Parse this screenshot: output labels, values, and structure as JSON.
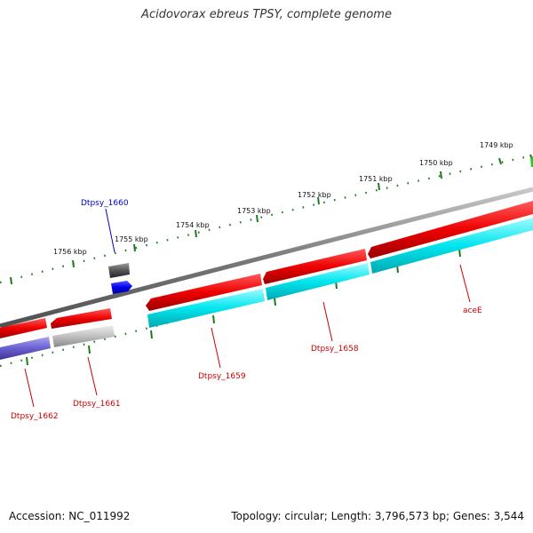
{
  "title": "Acidovorax ebreus TPSY, complete genome",
  "footer": {
    "accession": "Accession: NC_011992",
    "summary": "Topology: circular; Length: 3,796,573 bp; Genes: 3,544"
  },
  "colors": {
    "backbone": "#808080",
    "tick": "#1e7a1e",
    "forward_gene": "#ee0000",
    "cds": "#00e5ee",
    "label_red": "#cc0000",
    "label_blue": "#0000bb"
  },
  "scale_labels": [
    "1749 kbp",
    "1750 kbp",
    "1751 kbp",
    "1752 kbp",
    "1753 kbp",
    "1754 kbp",
    "1755 kbp",
    "1756 kbp"
  ],
  "gene_labels": {
    "dtpsy_1660": "Dtpsy_1660",
    "acee": "aceE",
    "dtpsy_1658": "Dtpsy_1658",
    "dtpsy_1659": "Dtpsy_1659",
    "dtpsy_1661": "Dtpsy_1661",
    "dtpsy_1662": "Dtpsy_1662"
  }
}
